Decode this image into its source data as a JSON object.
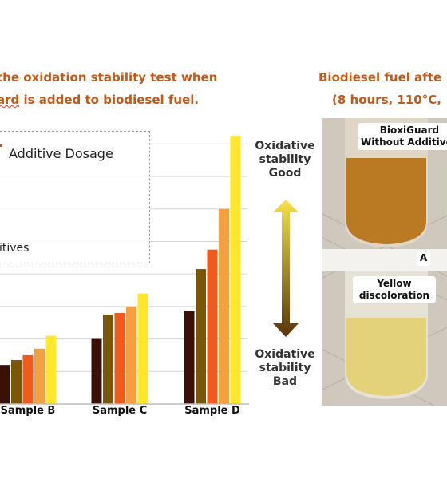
{
  "left_title": {
    "line1": "the oxidation stability test when",
    "line2_prefix": "ard",
    "line2_rest": " is added to biodiesel fuel."
  },
  "right_title": {
    "line1": "Biodiesel fuel afte",
    "line2": "(8 hours, 110°C,"
  },
  "legend": {
    "title": "Additive Dosage",
    "item": "itives"
  },
  "annotations": {
    "good": [
      "Oxidative",
      "stability",
      "Good"
    ],
    "bad": [
      "Oxidative",
      "stability",
      "Bad"
    ]
  },
  "photo": {
    "label_top": [
      "BioxiGuard",
      "Without Additives"
    ],
    "label_mid": "A",
    "label_bottom": [
      "Yellow",
      "discoloration"
    ]
  },
  "colors": {
    "title": "#c05a1a",
    "dosage_1": "#3a1008",
    "dosage_2": "#7a5608",
    "dosage_3": "#f05a1a",
    "dosage_4": "#f5a040",
    "dosage_5": "#ffe82a",
    "arrow_top": "#f7e24a",
    "arrow_bottom": "#5a3408"
  },
  "chart_data": {
    "type": "bar",
    "categories": [
      "Sample B",
      "Sample C",
      "Sample D"
    ],
    "ylim": [
      0,
      17
    ],
    "grid": true,
    "legend_placement": "top-left",
    "series": [
      {
        "values": [
          2.4,
          4.0,
          5.7
        ]
      },
      {
        "values": [
          2.7,
          5.5,
          8.3
        ]
      },
      {
        "values": [
          3.0,
          5.6,
          9.5
        ]
      },
      {
        "values": [
          3.4,
          6.0,
          12.0
        ]
      },
      {
        "values": [
          4.2,
          6.8,
          16.5
        ]
      }
    ]
  }
}
